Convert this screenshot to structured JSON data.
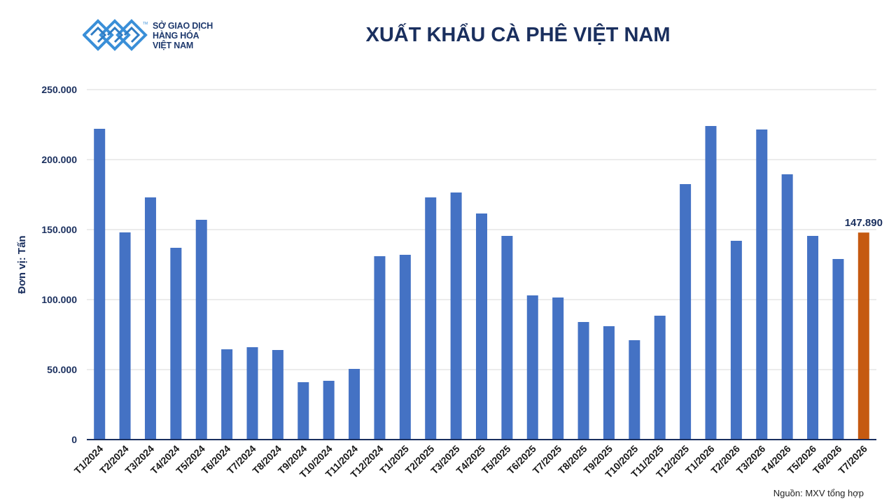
{
  "brand": {
    "logo_icon": "mxv-logo-icon",
    "logo_lines": [
      "SỞ GIAO DỊCH",
      "HÀNG HÓA",
      "VIỆT NAM"
    ],
    "tm": "TM",
    "color": "#3a8fd8"
  },
  "source_note": "Nguồn: MXV tổng hợp",
  "chart_data": {
    "type": "bar",
    "title": "XUẤT KHẨU CÀ PHÊ VIỆT NAM",
    "ylabel": "Đơn vị: Tấn",
    "xlabel": "",
    "ylim": [
      0,
      250000
    ],
    "yticks": [
      0,
      50000,
      100000,
      150000,
      200000,
      250000
    ],
    "ytick_labels": [
      "0",
      "50.000",
      "100.000",
      "150.000",
      "200.000",
      "250.000"
    ],
    "grid": true,
    "categories": [
      "T1/2024",
      "T2/2024",
      "T3/2024",
      "T4/2024",
      "T5/2024",
      "T6/2024",
      "T7/2024",
      "T8/2024",
      "T9/2024",
      "T10/2024",
      "T11/2024",
      "T12/2024",
      "T1/2025",
      "T2/2025",
      "T3/2025",
      "T4/2025",
      "T5/2025",
      "T6/2025",
      "T7/2025",
      "T8/2025",
      "T9/2025",
      "T10/2025",
      "T11/2025",
      "T12/2025",
      "T1/2026",
      "T2/2026",
      "T3/2026",
      "T4/2026",
      "T5/2026",
      "T6/2026",
      "T7/2026"
    ],
    "values": [
      222000,
      148000,
      173000,
      137000,
      157000,
      64500,
      66000,
      64000,
      41000,
      42000,
      50500,
      131000,
      132000,
      173000,
      176500,
      161500,
      145500,
      103000,
      101500,
      84000,
      81000,
      71000,
      88500,
      182500,
      224000,
      142000,
      221500,
      189500,
      145500,
      129000,
      147890
    ],
    "colors": {
      "default": "#4472c4",
      "highlight": "#c55a11"
    },
    "highlight_index": 30,
    "data_labels": [
      {
        "index": 30,
        "text": "147.890"
      }
    ]
  }
}
